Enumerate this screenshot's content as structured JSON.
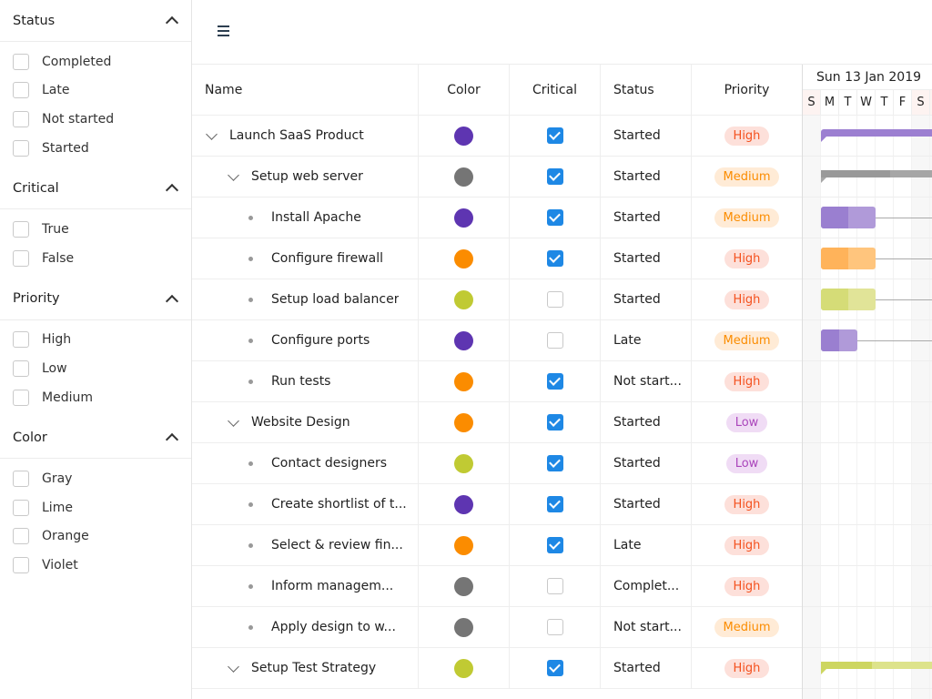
{
  "filters": [
    {
      "title": "Status",
      "items": [
        "Completed",
        "Late",
        "Not started",
        "Started"
      ]
    },
    {
      "title": "Critical",
      "items": [
        "True",
        "False"
      ]
    },
    {
      "title": "Priority",
      "items": [
        "High",
        "Low",
        "Medium"
      ]
    },
    {
      "title": "Color",
      "items": [
        "Gray",
        "Lime",
        "Orange",
        "Violet"
      ]
    }
  ],
  "colors": {
    "Violet": "#5e35b1",
    "Gray": "#757575",
    "Orange": "#fb8c00",
    "Lime": "#c0ca33",
    "accent": "#1e88e5"
  },
  "priority_styles": {
    "High": {
      "bg": "#fde0da",
      "fg": "#f4511e"
    },
    "Medium": {
      "bg": "#ffebd6",
      "fg": "#fb8c00"
    },
    "Low": {
      "bg": "#f0dcf5",
      "fg": "#ab47bc"
    }
  },
  "columns": [
    "Name",
    "Color",
    "Critical",
    "Status",
    "Priority"
  ],
  "rows": [
    {
      "name": "Launch SaaS Product",
      "level": 0,
      "parent": true,
      "color": "Violet",
      "critical": true,
      "status": "Started",
      "priority": "High"
    },
    {
      "name": "Setup web server",
      "level": 1,
      "parent": true,
      "color": "Gray",
      "critical": true,
      "status": "Started",
      "priority": "Medium"
    },
    {
      "name": "Install Apache",
      "level": 2,
      "color": "Violet",
      "critical": true,
      "status": "Started",
      "priority": "Medium"
    },
    {
      "name": "Configure firewall",
      "level": 2,
      "color": "Orange",
      "critical": true,
      "status": "Started",
      "priority": "High"
    },
    {
      "name": "Setup load balancer",
      "level": 2,
      "color": "Lime",
      "critical": false,
      "status": "Started",
      "priority": "High"
    },
    {
      "name": "Configure ports",
      "level": 2,
      "color": "Violet",
      "critical": false,
      "status": "Late",
      "priority": "Medium"
    },
    {
      "name": "Run tests",
      "level": 2,
      "color": "Orange",
      "critical": true,
      "status": "Not start...",
      "priority": "High"
    },
    {
      "name": "Website Design",
      "level": 1,
      "parent": true,
      "color": "Orange",
      "critical": true,
      "status": "Started",
      "priority": "Low"
    },
    {
      "name": "Contact designers",
      "level": 2,
      "color": "Lime",
      "critical": true,
      "status": "Started",
      "priority": "Low"
    },
    {
      "name": "Create shortlist of t...",
      "level": 2,
      "color": "Violet",
      "critical": true,
      "status": "Started",
      "priority": "High"
    },
    {
      "name": "Select & review fin...",
      "level": 2,
      "color": "Orange",
      "critical": true,
      "status": "Late",
      "priority": "High"
    },
    {
      "name": "Inform managem...",
      "level": 2,
      "color": "Gray",
      "critical": false,
      "status": "Complet...",
      "priority": "High"
    },
    {
      "name": "Apply design to w...",
      "level": 2,
      "color": "Gray",
      "critical": false,
      "status": "Not start...",
      "priority": "Medium"
    },
    {
      "name": "Setup Test Strategy",
      "level": 1,
      "parent": true,
      "color": "Lime",
      "critical": true,
      "status": "Started",
      "priority": "High"
    }
  ],
  "gantt": {
    "week_label": "Sun 13 Jan 2019",
    "days": [
      "S",
      "M",
      "T",
      "W",
      "T",
      "F",
      "S"
    ],
    "bars": [
      {
        "row": 0,
        "type": "summary",
        "color": "#9c7fd1",
        "start_day": 1
      },
      {
        "row": 1,
        "type": "summary",
        "color": "#a6a6a6",
        "start_day": 1,
        "progress_days": 3.8
      },
      {
        "row": 2,
        "type": "task",
        "color": "#b09ad9",
        "progress_color": "#9a7fd0",
        "start_day": 1,
        "days": 3,
        "progress_days": 1.5
      },
      {
        "row": 3,
        "type": "task",
        "color": "#ffc57d",
        "progress_color": "#ffb35a",
        "start_day": 1,
        "days": 3,
        "progress_days": 1.5
      },
      {
        "row": 4,
        "type": "task",
        "color": "#e1e498",
        "progress_color": "#d5dc77",
        "start_day": 1,
        "days": 3,
        "progress_days": 1.5
      },
      {
        "row": 5,
        "type": "task",
        "color": "#b09ad9",
        "progress_color": "#9a7fd0",
        "start_day": 1,
        "days": 2,
        "progress_days": 1
      },
      {
        "row": 13,
        "type": "summary",
        "color": "#dde38b",
        "progress_color": "#cdd660",
        "start_day": 1,
        "progress_days": 2.8
      }
    ]
  }
}
